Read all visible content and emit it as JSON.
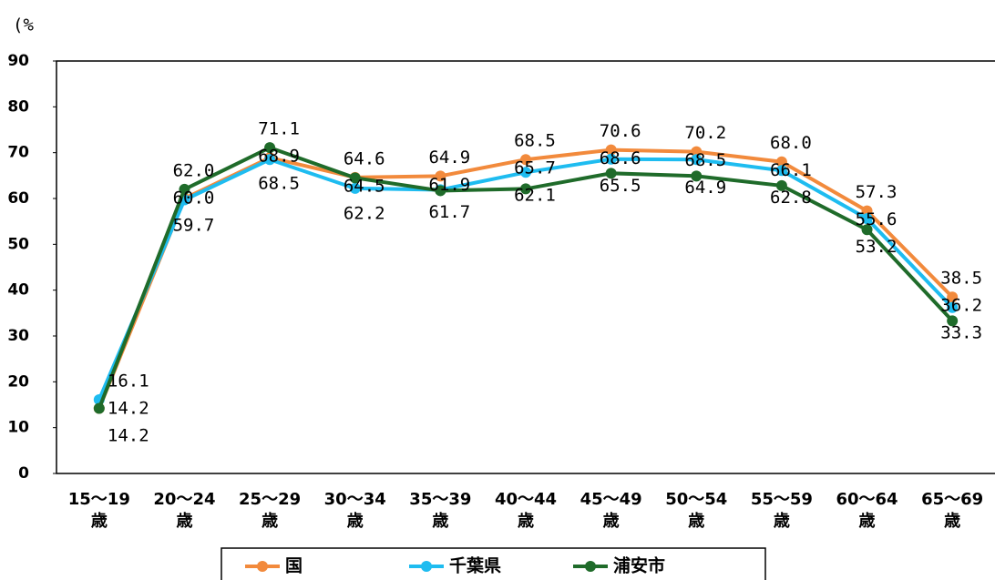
{
  "chart_data": {
    "type": "line",
    "y_label": "(%",
    "categories": [
      "15～19\n歳",
      "20～24\n歳",
      "25～29\n歳",
      "30～34\n歳",
      "35～39\n歳",
      "40～44\n歳",
      "45～49\n歳",
      "50～54\n歳",
      "55～59\n歳",
      "60～64\n歳",
      "65～69\n歳"
    ],
    "series": [
      {
        "name": "国",
        "color": "#f28a3c",
        "values": [
          14.2,
          60,
          68.9,
          64.6,
          64.9,
          68.5,
          70.6,
          70.2,
          68,
          57.3,
          38.5
        ],
        "value_labels": [
          "14.2",
          "60.0",
          "68.9",
          "64.6",
          "64.9",
          "68.5",
          "70.6",
          "70.2",
          "68.0",
          "57.3",
          "38.5"
        ]
      },
      {
        "name": "千葉県",
        "color": "#1ebcf0",
        "values": [
          16.1,
          59.7,
          68.5,
          62.2,
          61.9,
          65.7,
          68.6,
          68.5,
          66.1,
          55.6,
          36.2
        ],
        "value_labels": [
          "16.1",
          "59.7",
          "68.5",
          "62.2",
          "61.9",
          "65.7",
          "68.6",
          "68.5",
          "66.1",
          "55.6",
          "36.2"
        ]
      },
      {
        "name": "浦安市",
        "color": "#1f6b2a",
        "values": [
          14.2,
          62,
          71.1,
          64.5,
          61.7,
          62.1,
          65.5,
          64.9,
          62.8,
          53.2,
          33.3
        ],
        "value_labels": [
          "14.2",
          "62.0",
          "71.1",
          "64.5",
          "61.7",
          "62.1",
          "65.5",
          "64.9",
          "62.8",
          "53.2",
          "33.3"
        ]
      }
    ],
    "ylim": [
      0,
      90
    ],
    "yticks": [
      0,
      10,
      20,
      30,
      40,
      50,
      60,
      70,
      80,
      90
    ],
    "grid": false,
    "legend": "bottom"
  }
}
